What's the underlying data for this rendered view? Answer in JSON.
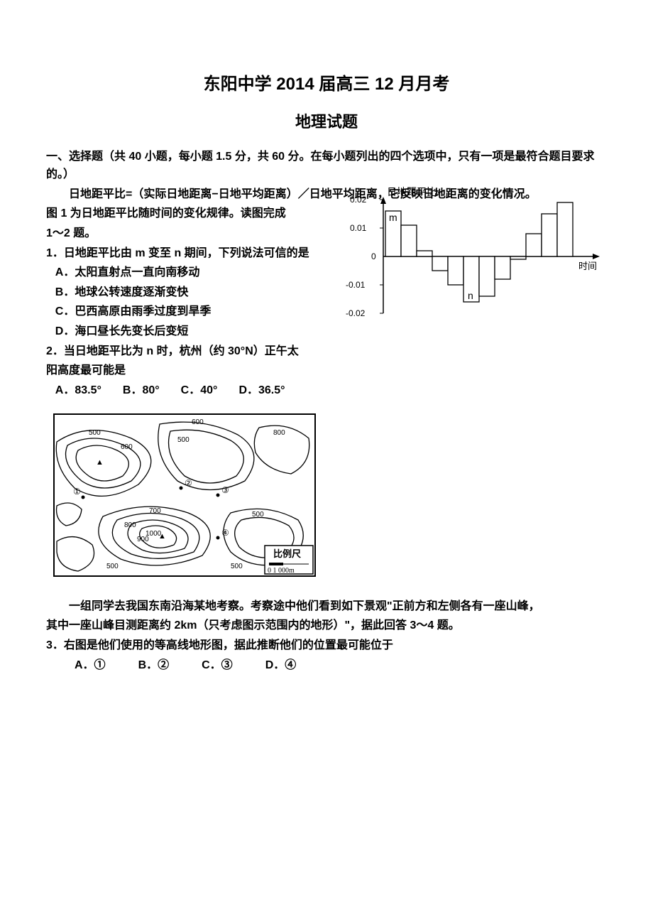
{
  "title_main": "东阳中学 2014 届高三 12 月月考",
  "title_sub": "地理试题",
  "section1_header": "一、选择题（共 40 小题，每小题 1.5 分，共 60 分。在每小题列出的四个选项中，只有一项是最符合题目要求的。）",
  "intro1_line1": "日地距平比=（实际日地距离−日地平均距离）／日地平均距离，它反映日地距离的变化情况。",
  "intro1_line2": "图 1 为日地距平比随时间的变化规律。读图完成",
  "intro1_line3": "1～2 题。",
  "q1_stem": "1．日地距平比由 m 变至 n 期间，下列说法可信的是",
  "q1_A": "A．太阳直射点一直向南移动",
  "q1_B": "B．地球公转速度逐渐变快",
  "q1_C": "C．巴西高原由雨季过度到旱季",
  "q1_D": "D．海口昼长先变长后变短",
  "q2_stem1": "2．当日地距平比为 n 时，杭州（约 30°N）正午太",
  "q2_stem2": "阳高度最可能是",
  "q2_A": "A．83.5°",
  "q2_B": "B．80°",
  "q2_C": "C．40°",
  "q2_D": "D．36.5°",
  "chart": {
    "ylabel": "日地距平比",
    "xlabel": "时间",
    "y_ticks": [
      "0.02",
      "0.01",
      "0",
      "-0.01",
      "-0.02"
    ],
    "y_values": [
      0.02,
      0.01,
      0,
      -0.01,
      -0.02
    ],
    "bars": [
      0.016,
      0.011,
      0.002,
      -0.005,
      -0.01,
      -0.016,
      -0.014,
      -0.008,
      -0.001,
      0.008,
      0.015,
      0.019
    ],
    "label_m": "m",
    "label_n": "n",
    "m_index": 0,
    "n_index": 5,
    "axis_color": "#000000",
    "bar_stroke": "#000000",
    "bar_fill": "#ffffff"
  },
  "topo": {
    "contour_labels": [
      "500",
      "600",
      "700",
      "800",
      "900",
      "1000"
    ],
    "scale_label": "比例尺",
    "scale_bar": "0  1 000m",
    "markers": [
      "①",
      "②",
      "③",
      "④"
    ],
    "stroke": "#000000",
    "peak_symbol": "▲"
  },
  "intro2_line1": "一组同学去我国东南沿海某地考察。考察途中他们看到如下景观\"正前方和左侧各有一座山峰，",
  "intro2_line2": "其中一座山峰目测距离约 2km（只考虑图示范围内的地形）\"，据此回答 3～4 题。",
  "q3_stem": "3．右图是他们使用的等高线地形图，据此推断他们的位置最可能位于",
  "q3_A": "A．①",
  "q3_B": "B．②",
  "q3_C": "C．③",
  "q3_D": "D．④"
}
